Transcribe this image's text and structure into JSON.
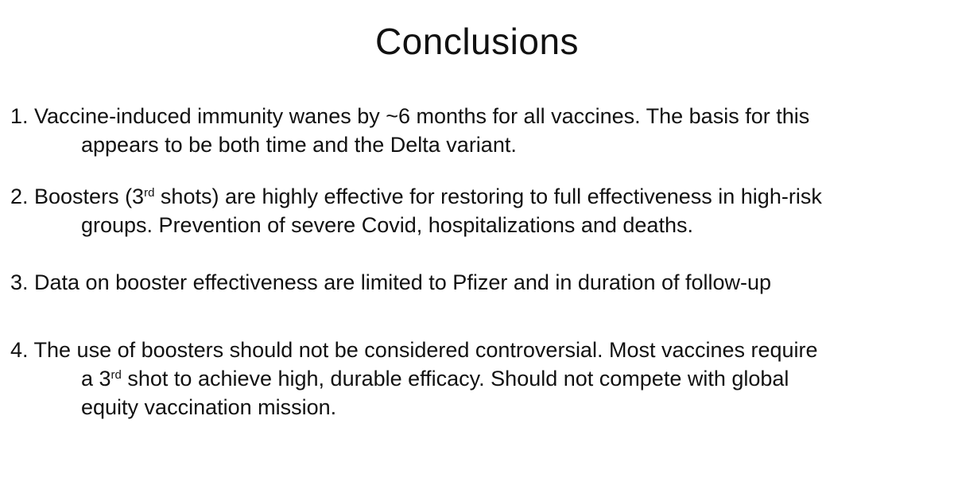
{
  "title": "Conclusions",
  "items": [
    {
      "line1": "1. Vaccine-induced immunity wanes by ~6 months for all vaccines. The basis for this",
      "line2": "appears to be both time and the Delta variant."
    },
    {
      "line1_a": "2. Boosters (3",
      "line1_sup": "rd",
      "line1_b": " shots)  are highly effective for restoring to full effectiveness in high-risk",
      "line2": "groups. Prevention of severe Covid, hospitalizations and deaths."
    },
    {
      "line1": "3. Data on booster effectiveness are limited to Pfizer and in duration of follow-up"
    },
    {
      "line1": "4. The use of boosters should not be considered controversial. Most vaccines require",
      "line2_a": "a 3",
      "line2_sup": "rd",
      "line2_b": " shot to achieve high, durable efficacy. Should not compete with global",
      "line3": "equity vaccination mission."
    }
  ]
}
